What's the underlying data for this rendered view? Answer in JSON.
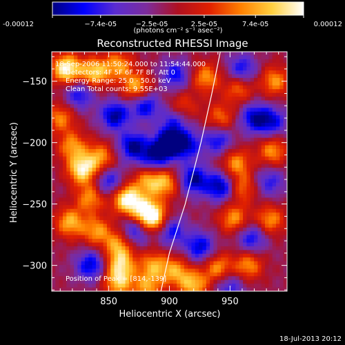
{
  "chart_data": {
    "type": "heatmap",
    "title": "Reconstructed RHESSI Image",
    "xlabel": "Heliocentric X (arcsec)",
    "ylabel": "Heliocentric Y (arcsec)",
    "xlim": [
      803,
      997
    ],
    "ylim": [
      -321,
      -126
    ],
    "x_ticks": [
      850,
      900,
      950
    ],
    "x_tick_labels": [
      "850",
      "900",
      "950"
    ],
    "y_ticks": [
      -150,
      -200,
      -250,
      -300
    ],
    "y_tick_labels": [
      "−150",
      "−200",
      "−250",
      "−300"
    ],
    "colorbar": {
      "range": [
        -0.00012,
        0.00012
      ],
      "tick_values": [
        -0.00012,
        -7.4e-05,
        -2.5e-05,
        2.5e-05,
        7.4e-05,
        0.00012
      ],
      "tick_labels": [
        "-0.00012",
        "−7.4e-05",
        "−2.5e-05",
        "2.5e-05",
        "7.4e-05",
        "0.00012"
      ],
      "unit_label": "(photons cm⁻² s⁻¹ asec⁻²)",
      "colormap": [
        "#000080",
        "#0000ff",
        "#5a2cd0",
        "#7c2c9c",
        "#b01020",
        "#e02000",
        "#ff8000",
        "#ffd040",
        "#ffffff"
      ]
    },
    "annotations": [
      "18-Sep-2006 11:50:24.000 to 11:54:44.000",
      "Detectors: 4F 5F 6F 7F 8F, Att 0",
      "Energy Range: 25.0 - 50.0 keV",
      "Clean    Total counts: 9.55E+03",
      "Position of Peak = [814,-139]"
    ],
    "limb_points": [
      [
        942,
        -126
      ],
      [
        935,
        -160
      ],
      [
        926,
        -200
      ],
      [
        913,
        -250
      ],
      [
        900,
        -290
      ],
      [
        893,
        -321
      ]
    ],
    "sources": [
      {
        "x": 815,
        "y": -140,
        "amp": 1.0
      },
      {
        "x": 838,
        "y": -143,
        "amp": 0.8
      },
      {
        "x": 858,
        "y": -137,
        "amp": 0.6
      },
      {
        "x": 873,
        "y": -155,
        "amp": 0.7
      },
      {
        "x": 810,
        "y": -180,
        "amp": 0.55
      },
      {
        "x": 820,
        "y": -203,
        "amp": 0.6
      },
      {
        "x": 828,
        "y": -222,
        "amp": 0.9
      },
      {
        "x": 843,
        "y": -212,
        "amp": 0.6
      },
      {
        "x": 835,
        "y": -245,
        "amp": 0.6
      },
      {
        "x": 865,
        "y": -246,
        "amp": 1.0
      },
      {
        "x": 880,
        "y": -256,
        "amp": 0.7
      },
      {
        "x": 883,
        "y": -231,
        "amp": 0.6
      },
      {
        "x": 897,
        "y": -233,
        "amp": 0.6
      },
      {
        "x": 818,
        "y": -265,
        "amp": 0.7
      },
      {
        "x": 840,
        "y": -272,
        "amp": 0.6
      },
      {
        "x": 858,
        "y": -283,
        "amp": 0.6
      },
      {
        "x": 887,
        "y": -262,
        "amp": 0.8
      },
      {
        "x": 860,
        "y": -299,
        "amp": 0.7
      },
      {
        "x": 887,
        "y": -300,
        "amp": 0.6
      },
      {
        "x": 905,
        "y": -305,
        "amp": 0.6
      },
      {
        "x": 858,
        "y": -314,
        "amp": 0.7
      },
      {
        "x": 882,
        "y": -318,
        "amp": 0.6
      },
      {
        "x": 920,
        "y": -316,
        "amp": 0.7
      },
      {
        "x": 940,
        "y": -302,
        "amp": 0.6
      },
      {
        "x": 965,
        "y": -300,
        "amp": 0.6
      },
      {
        "x": 983,
        "y": -263,
        "amp": 0.6
      },
      {
        "x": 953,
        "y": -262,
        "amp": 0.6
      },
      {
        "x": 960,
        "y": -237,
        "amp": 0.5
      },
      {
        "x": 955,
        "y": -217,
        "amp": 0.6
      },
      {
        "x": 985,
        "y": -207,
        "amp": 0.6
      },
      {
        "x": 942,
        "y": -180,
        "amp": 0.5
      },
      {
        "x": 957,
        "y": -156,
        "amp": 0.5
      },
      {
        "x": 987,
        "y": -150,
        "amp": 0.6
      },
      {
        "x": 930,
        "y": -147,
        "amp": 0.6
      },
      {
        "x": 910,
        "y": -172,
        "amp": 0.55
      },
      {
        "x": 855,
        "y": -178,
        "amp": -0.8
      },
      {
        "x": 826,
        "y": -161,
        "amp": -0.6
      },
      {
        "x": 880,
        "y": -170,
        "amp": -0.7
      },
      {
        "x": 900,
        "y": -200,
        "amp": -1.0
      },
      {
        "x": 905,
        "y": -180,
        "amp": -0.6
      },
      {
        "x": 870,
        "y": -203,
        "amp": -0.8
      },
      {
        "x": 888,
        "y": -212,
        "amp": -0.7
      },
      {
        "x": 850,
        "y": -232,
        "amp": -0.6
      },
      {
        "x": 920,
        "y": -230,
        "amp": -0.8
      },
      {
        "x": 942,
        "y": -236,
        "amp": -0.8
      },
      {
        "x": 915,
        "y": -202,
        "amp": -0.6
      },
      {
        "x": 940,
        "y": -198,
        "amp": -0.6
      },
      {
        "x": 970,
        "y": -180,
        "amp": -0.7
      },
      {
        "x": 985,
        "y": -183,
        "amp": -0.6
      },
      {
        "x": 960,
        "y": -140,
        "amp": -0.6
      },
      {
        "x": 905,
        "y": -145,
        "amp": -0.6
      },
      {
        "x": 835,
        "y": -300,
        "amp": -0.7
      },
      {
        "x": 872,
        "y": -272,
        "amp": -0.6
      },
      {
        "x": 902,
        "y": -272,
        "amp": -0.6
      },
      {
        "x": 925,
        "y": -285,
        "amp": -0.7
      },
      {
        "x": 968,
        "y": -278,
        "amp": -0.6
      },
      {
        "x": 983,
        "y": -232,
        "amp": -0.5
      },
      {
        "x": 950,
        "y": -318,
        "amp": -0.5
      }
    ]
  },
  "footer": {
    "timestamp": "18-Jul-2013 20:12"
  }
}
